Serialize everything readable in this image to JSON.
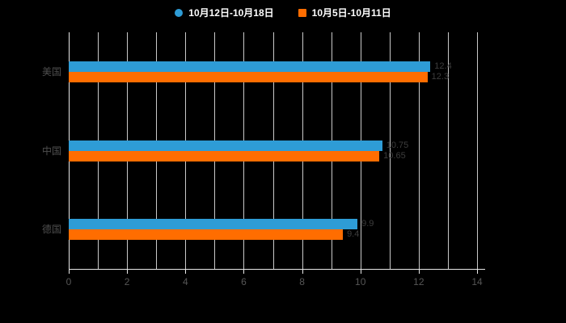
{
  "chart_data": {
    "type": "bar",
    "orientation": "horizontal",
    "title": "",
    "categories": [
      "美国",
      "中国",
      "德国"
    ],
    "series": [
      {
        "name": "10月12日-10月18日",
        "color": "#2E9CD6",
        "marker": "circle",
        "values": [
          12.4,
          10.75,
          9.9
        ]
      },
      {
        "name": "10月5日-10月11日",
        "color": "#FF6D00",
        "marker": "square",
        "values": [
          12.3,
          10.65,
          9.4
        ]
      }
    ],
    "xlim": [
      0,
      14
    ],
    "x_ticks": [
      0,
      2,
      4,
      6,
      8,
      10,
      12,
      14
    ],
    "grid_step": 1,
    "legend_position": "top",
    "background": "#000000",
    "grid_on": true,
    "value_labels": "faint dark labels at bar ends"
  },
  "colors": {
    "background": "#000000",
    "legend_text": "#ffffff",
    "axis_text": "#565656",
    "gridline": "#c9c9c9",
    "axis_line": "#e8e8e8",
    "value_label": "#3d3d3d"
  }
}
